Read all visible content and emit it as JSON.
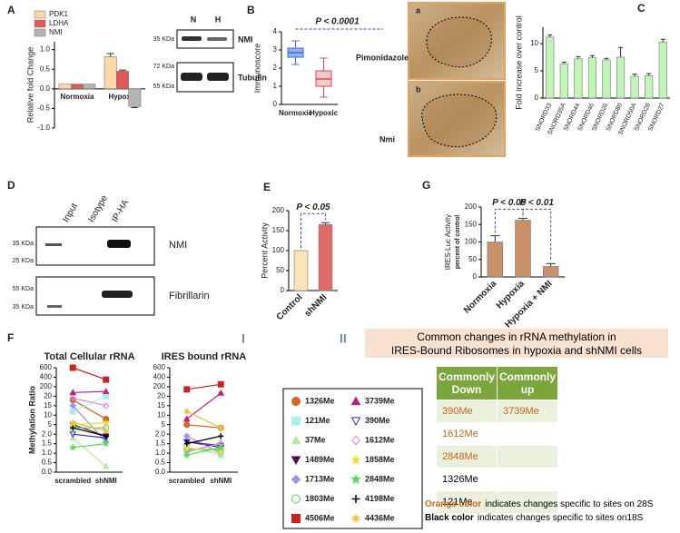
{
  "panels": [
    "A",
    "B",
    "C",
    "D",
    "E",
    "F",
    "G"
  ],
  "sections": [
    "I",
    "II"
  ],
  "blot_a": {
    "lanes": [
      "N",
      "H"
    ],
    "markers": [
      "35 KDa",
      "72 KDa",
      "55 KDa"
    ],
    "proteins": [
      "NMI",
      "Tubulin"
    ]
  },
  "images": {
    "labels": [
      "a",
      "b"
    ],
    "stains": [
      "Pimonidazole",
      "Nmi"
    ]
  },
  "blot_d": {
    "lanes": [
      "Input",
      "Isotype",
      "IP-HA"
    ],
    "markers": [
      "35 KDa",
      "25 KDa",
      "55 KDa",
      "35 KDa"
    ],
    "proteins": [
      "NMI",
      "Fibrillarin"
    ]
  },
  "table": {
    "title": [
      "Common changes in rRNA methylation in",
      "IRES-Bound Ribosomes in hypoxia and shNMI cells"
    ],
    "header": [
      "Commonly Down",
      "Commonly up"
    ],
    "rows": [
      [
        "390Me",
        "3739Me"
      ],
      [
        "1612Me"
      ],
      [
        "2848Me"
      ],
      [
        "1326Me"
      ],
      [
        "121Me"
      ]
    ],
    "row_colors": [
      "#c8661e",
      "#c8661e",
      "#c8661e",
      "#000000",
      "#000000"
    ]
  },
  "notes": [
    {
      "bold": "Orange color",
      "text": "indicates changes specific to sites on 28S",
      "color": "#d2691e"
    },
    {
      "bold": "Black color",
      "text": "indicates changes specific to sites on18S",
      "color": "#000000"
    }
  ],
  "chart_data": [
    {
      "type": "bar",
      "y_label": "Relative fold Change",
      "categories": [
        "Normoxia",
        "Hypoxia"
      ],
      "series": [
        {
          "name": "PDK1",
          "color": "#f8d7a8",
          "values": [
            0.12,
            0.82
          ],
          "errors": [
            null,
            0.08
          ]
        },
        {
          "name": "LDHA",
          "color": "#e05a5a",
          "values": [
            0.12,
            0.45
          ],
          "errors": [
            null,
            0.03
          ]
        },
        {
          "name": "NMI",
          "color": "#b4b4b4",
          "values": [
            0.12,
            -0.45
          ],
          "errors": [
            null,
            0.03
          ]
        }
      ],
      "ylim": [
        -1,
        1.2
      ],
      "yticks": [
        {
          "value": -1,
          "label": "-1.0"
        },
        -0.5,
        {
          "value": 0,
          "label": "0.0"
        },
        0.5,
        {
          "value": 1,
          "label": "1.0"
        }
      ],
      "legend": "top-left"
    },
    {
      "type": "box",
      "y_label": "Immunoscore",
      "annotation": "P < 0.0001",
      "categories": [
        "Normoxic",
        "Hypoxic"
      ],
      "boxes": [
        {
          "min": 2.2,
          "q1": 2.6,
          "median": 2.85,
          "q3": 3.1,
          "max": 3.5,
          "color": "#3f6fd8",
          "fill": "#8fb0f0"
        },
        {
          "min": 0.4,
          "q1": 1.0,
          "median": 1.4,
          "q3": 1.85,
          "max": 2.55,
          "color": "#d84a5a",
          "fill": "#f5c8cc"
        }
      ],
      "ylim": [
        0,
        4
      ],
      "yticks": [
        0,
        1,
        2,
        3,
        4
      ]
    },
    {
      "type": "bar",
      "y_label": "Fold increase over control",
      "categories": [
        "SNORD33",
        "SNORD35A",
        "SNORD44",
        "SNORD46",
        "SNORD26",
        "SNORD80",
        "SNORD50A",
        "SNORD28",
        "SNORD27"
      ],
      "values": [
        11.2,
        6.3,
        7.2,
        7.4,
        7.0,
        7.5,
        4.0,
        4.1,
        10.3
      ],
      "errors": [
        0.4,
        0.3,
        0.4,
        0.4,
        0.3,
        1.8,
        0.4,
        0.4,
        0.5
      ],
      "color": "#bff5b5",
      "ylim": [
        0,
        13
      ],
      "yticks": [
        0,
        5,
        10
      ]
    },
    {
      "type": "bar",
      "y_label": "Percent Activity",
      "annotations": [
        "P < 0.05"
      ],
      "categories": [
        "Control",
        "shNMI"
      ],
      "values": [
        100,
        165
      ],
      "errors": [
        null,
        5
      ],
      "colors": [
        "#fbe3b8",
        "#e06a6a"
      ],
      "ylim": [
        0,
        200
      ],
      "yticks": [
        0,
        50,
        100,
        150,
        200
      ]
    },
    {
      "type": "bar",
      "y_label": "IRES-Luc Activity",
      "y_sublabel": "percent of control",
      "annotations": [
        "P < 0.05",
        "P < 0.01"
      ],
      "categories": [
        "Normoxia",
        "Hypoxia",
        "Hypoxia + NMI"
      ],
      "values": [
        100,
        162,
        30
      ],
      "errors": [
        18,
        6,
        8
      ],
      "color": "#c9906a",
      "ylim": [
        0,
        200
      ],
      "yticks": [
        0,
        50,
        100,
        150,
        200
      ]
    },
    {
      "type": "line",
      "title": "Total Cellular rRNA",
      "y_label": "Methylation Ratio",
      "categories": [
        "scrambled",
        "shNMI"
      ],
      "ylim": [
        0,
        600
      ],
      "yticks": [
        {
          "value": 0,
          "label": "0.0"
        },
        0.5,
        {
          "value": 1,
          "label": "1.0"
        },
        1.5,
        {
          "value": 2,
          "label": "2.0"
        },
        5,
        10,
        15,
        20,
        200,
        400,
        600
      ],
      "series": [
        {
          "name": "1326Me",
          "color": "#d2691e",
          "marker": "circle",
          "values": [
            18,
            8
          ]
        },
        {
          "name": "121Me",
          "color": "#a8f0f0",
          "marker": "square",
          "values": [
            12,
            20
          ]
        },
        {
          "name": "37Me",
          "color": "#b8e8a0",
          "marker": "triangle",
          "values": [
            1.8,
            0.3
          ]
        },
        {
          "name": "1489Me",
          "color": "#50104a",
          "marker": "triangle-down",
          "values": [
            5,
            1.9
          ]
        },
        {
          "name": "1713Me",
          "color": "#a090f0",
          "marker": "diamond",
          "values": [
            15,
            1.6
          ]
        },
        {
          "name": "1803Me",
          "color": "#60d060",
          "marker": "circle-open",
          "values": [
            4,
            4
          ]
        },
        {
          "name": "4506Me",
          "color": "#d02020",
          "marker": "square",
          "values": [
            600,
            350
          ]
        },
        {
          "name": "3739Me",
          "color": "#c0207a",
          "marker": "triangle",
          "values": [
            90,
            110
          ]
        },
        {
          "name": "390Me",
          "color": "#3030d0",
          "marker": "triangle-down-open",
          "values": [
            2,
            1.8
          ]
        },
        {
          "name": "1612Me",
          "color": "#e080f0",
          "marker": "diamond-open",
          "values": [
            19,
            15
          ]
        },
        {
          "name": "1858Me",
          "color": "#f0e020",
          "marker": "star",
          "values": [
            5,
            6
          ]
        },
        {
          "name": "2848Me",
          "color": "#50e050",
          "marker": "star",
          "values": [
            1.3,
            1.5
          ]
        },
        {
          "name": "4198Me",
          "color": "#000000",
          "marker": "plus",
          "values": [
            4,
            1.9
          ]
        },
        {
          "name": "4436Me",
          "color": "#f0c040",
          "marker": "asterisk",
          "values": [
            6,
            3
          ]
        }
      ]
    },
    {
      "type": "line",
      "title": "IRES bound rRNA",
      "categories": [
        "scrambled",
        "shNMI"
      ],
      "ylim": [
        0,
        600
      ],
      "yticks": [
        {
          "value": 0,
          "label": "0.0"
        },
        0.5,
        {
          "value": 1,
          "label": "1.0"
        },
        1.5,
        {
          "value": 2,
          "label": "2.0"
        },
        5,
        10,
        15,
        20,
        200,
        400,
        600
      ],
      "series": [
        {
          "name": "1326Me",
          "color": "#d2691e",
          "marker": "circle",
          "values": [
            5,
            4
          ]
        },
        {
          "name": "121Me",
          "color": "#a8f0f0",
          "marker": "square",
          "values": [
            1.3,
            0.9
          ]
        },
        {
          "name": "37Me",
          "color": "#b8e8a0",
          "marker": "triangle",
          "values": [
            1,
            1.6
          ]
        },
        {
          "name": "1489Me",
          "color": "#50104a",
          "marker": "triangle-down",
          "values": [
            1.6,
            1.3
          ]
        },
        {
          "name": "1713Me",
          "color": "#a090f0",
          "marker": "diamond",
          "values": [
            1.9,
            1
          ]
        },
        {
          "name": "1803Me",
          "color": "#60d060",
          "marker": "circle-open",
          "values": [
            1.2,
            1.2
          ]
        },
        {
          "name": "4506Me",
          "color": "#d02020",
          "marker": "square",
          "values": [
            150,
            250
          ]
        },
        {
          "name": "3739Me",
          "color": "#c0207a",
          "marker": "triangle",
          "values": [
            8,
            80
          ]
        },
        {
          "name": "390Me",
          "color": "#3030d0",
          "marker": "triangle-down-open",
          "values": [
            1.6,
            1.4
          ]
        },
        {
          "name": "1612Me",
          "color": "#e080f0",
          "marker": "diamond-open",
          "values": [
            1.1,
            1.5
          ]
        },
        {
          "name": "1858Me",
          "color": "#f0e020",
          "marker": "star",
          "values": [
            1.3,
            1
          ]
        },
        {
          "name": "2848Me",
          "color": "#50e050",
          "marker": "star",
          "values": [
            0.9,
            1.3
          ]
        },
        {
          "name": "4198Me",
          "color": "#000000",
          "marker": "plus",
          "values": [
            1.5,
            1.9
          ]
        },
        {
          "name": "4436Me",
          "color": "#f0c040",
          "marker": "asterisk",
          "values": [
            12,
            4
          ]
        }
      ]
    }
  ]
}
